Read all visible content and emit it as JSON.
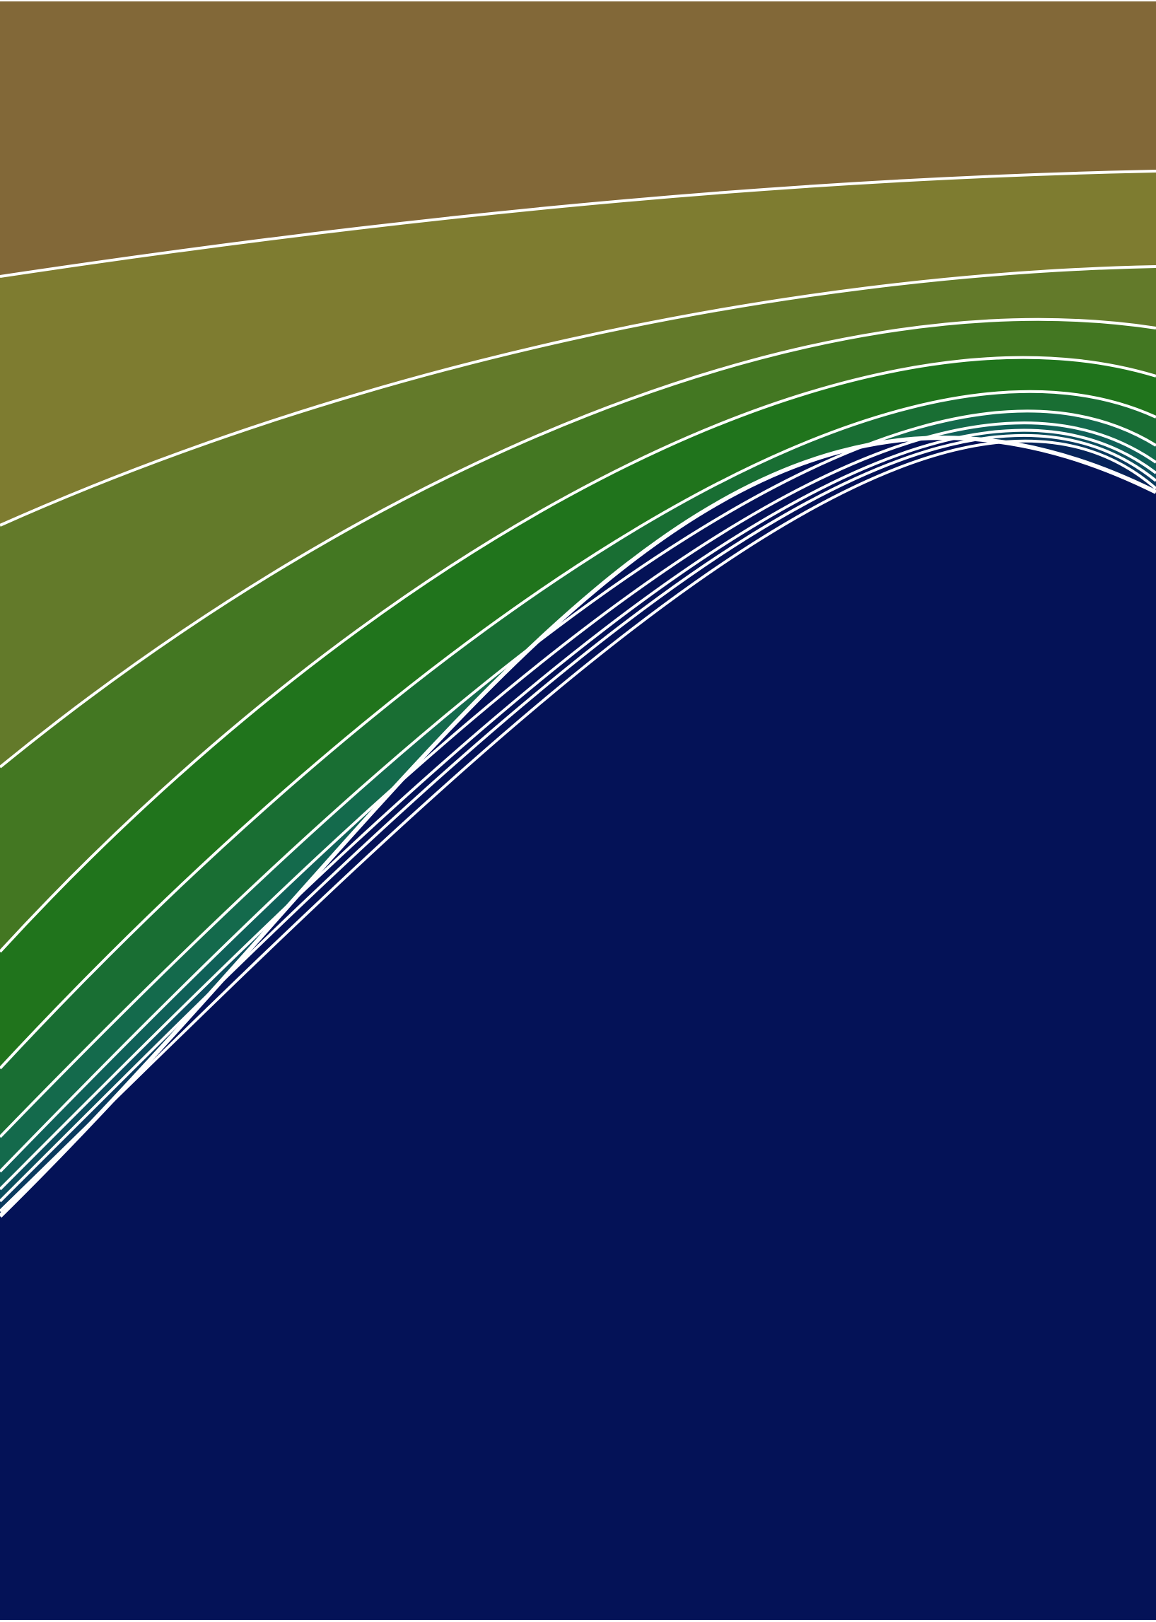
{
  "artwork": {
    "background_color": "#FFFFFF",
    "separator_color": "#FFFFFF",
    "bands": [
      {
        "name": "band-1",
        "color": "#826838"
      },
      {
        "name": "band-2",
        "color": "#7E7C30"
      },
      {
        "name": "band-3",
        "color": "#637A2A"
      },
      {
        "name": "band-4",
        "color": "#437722"
      },
      {
        "name": "band-5",
        "color": "#20741C"
      },
      {
        "name": "band-6",
        "color": "#196E33"
      },
      {
        "name": "band-7",
        "color": "#146A4C"
      },
      {
        "name": "band-8",
        "color": "#106058"
      },
      {
        "name": "band-9",
        "color": "#0D4F5E"
      },
      {
        "name": "band-10",
        "color": "#0A3A5E"
      },
      {
        "name": "band-11",
        "color": "#07245A"
      },
      {
        "name": "band-12",
        "color": "#041257"
      }
    ]
  }
}
